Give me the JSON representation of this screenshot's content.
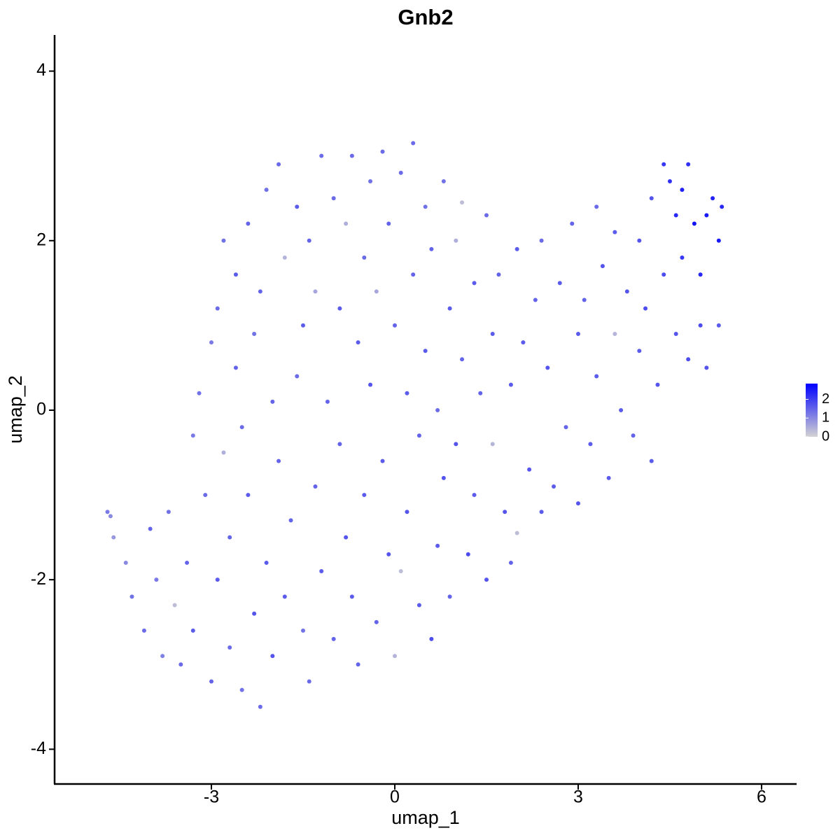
{
  "chart_data": {
    "type": "scatter",
    "title": "Gnb2",
    "x_label": "umap_1",
    "y_label": "umap_2",
    "xlim": [
      -5.565,
      6.573
    ],
    "xticks": [
      -3,
      0,
      3,
      6
    ],
    "ylim": [
      -4.41,
      4.426
    ],
    "yticks": [
      -4,
      -2,
      0,
      2,
      4
    ],
    "color_scale": {
      "lim": [
        0,
        2.84
      ],
      "ticks": [
        0,
        1,
        2
      ],
      "colors": [
        "#d3d3d3",
        "#0000ff"
      ]
    },
    "x": [
      -4.7,
      -4.65,
      -4.6,
      -4.4,
      -4.3,
      -4.1,
      -4.0,
      -3.9,
      -3.8,
      -3.7,
      -3.6,
      -3.5,
      -3.4,
      -3.3,
      -3.3,
      -3.2,
      -3.1,
      -3.0,
      -3.0,
      -2.9,
      -2.9,
      -2.8,
      -2.8,
      -2.7,
      -2.7,
      -2.6,
      -2.6,
      -2.5,
      -2.5,
      -2.4,
      -2.4,
      -2.3,
      -2.3,
      -2.2,
      -2.2,
      -2.1,
      -2.1,
      -2.0,
      -2.0,
      -1.9,
      -1.9,
      -1.8,
      -1.8,
      -1.7,
      -1.6,
      -1.6,
      -1.5,
      -1.5,
      -1.4,
      -1.4,
      -1.3,
      -1.3,
      -1.2,
      -1.2,
      -1.1,
      -1.0,
      -1.0,
      -0.9,
      -0.9,
      -0.8,
      -0.8,
      -0.7,
      -0.7,
      -0.6,
      -0.6,
      -0.5,
      -0.5,
      -0.4,
      -0.4,
      -0.3,
      -0.3,
      -0.2,
      -0.2,
      -0.1,
      -0.1,
      0.0,
      0.0,
      0.1,
      0.1,
      0.2,
      0.2,
      0.3,
      0.3,
      0.4,
      0.4,
      0.5,
      0.5,
      0.6,
      0.6,
      0.7,
      0.7,
      0.8,
      0.8,
      0.9,
      0.9,
      1.0,
      1.0,
      1.1,
      1.1,
      1.2,
      1.3,
      1.3,
      1.4,
      1.5,
      1.5,
      1.6,
      1.6,
      1.7,
      1.8,
      1.9,
      1.9,
      2.0,
      2.0,
      2.1,
      2.2,
      2.3,
      2.4,
      2.4,
      2.5,
      2.6,
      2.7,
      2.8,
      2.9,
      3.0,
      3.0,
      3.1,
      3.2,
      3.3,
      3.3,
      3.4,
      3.5,
      3.6,
      3.6,
      3.7,
      3.8,
      3.9,
      4.0,
      4.0,
      4.1,
      4.2,
      4.2,
      4.3,
      4.4,
      4.4,
      4.5,
      4.6,
      4.6,
      4.7,
      4.7,
      4.8,
      4.8,
      4.9,
      5.0,
      5.0,
      5.1,
      5.1,
      5.2,
      5.3,
      5.3,
      5.35
    ],
    "y": [
      -1.2,
      -1.25,
      -1.5,
      -1.8,
      -2.2,
      -2.6,
      -1.4,
      -2.0,
      -2.9,
      -1.2,
      -2.3,
      -3.0,
      -1.8,
      -0.3,
      -2.6,
      0.2,
      -1.0,
      -3.2,
      0.8,
      -2.0,
      1.2,
      -0.5,
      2.0,
      -1.5,
      -2.8,
      0.5,
      1.6,
      -3.3,
      -0.2,
      2.2,
      -1.0,
      -2.4,
      0.9,
      -3.5,
      1.4,
      2.6,
      -1.8,
      0.1,
      -2.9,
      2.9,
      -0.6,
      1.8,
      -2.2,
      -1.3,
      2.4,
      0.4,
      -2.6,
      1.0,
      -3.2,
      2.0,
      1.4,
      -0.9,
      3.0,
      -1.9,
      0.1,
      2.5,
      -2.7,
      1.2,
      -0.4,
      2.2,
      -1.5,
      3.0,
      -2.2,
      0.8,
      -3.0,
      1.8,
      -1.0,
      2.7,
      0.3,
      -2.5,
      1.4,
      3.05,
      -0.6,
      2.2,
      -1.7,
      1.0,
      -2.9,
      -1.9,
      2.8,
      0.2,
      -1.2,
      3.15,
      1.6,
      -2.3,
      -0.3,
      2.4,
      0.7,
      -2.7,
      1.9,
      -1.6,
      0.0,
      2.7,
      -0.8,
      1.2,
      -2.2,
      2.0,
      -0.4,
      2.45,
      0.6,
      -1.7,
      1.5,
      -1.0,
      0.2,
      -2.0,
      2.3,
      0.9,
      -0.4,
      1.6,
      -1.2,
      0.3,
      -1.8,
      1.9,
      -1.45,
      0.8,
      -0.7,
      1.3,
      -1.2,
      2.0,
      0.5,
      -0.9,
      1.5,
      -0.2,
      2.2,
      0.9,
      -1.1,
      1.3,
      -0.4,
      2.4,
      0.4,
      1.7,
      -0.8,
      0.9,
      2.1,
      0.0,
      1.4,
      -0.3,
      2.0,
      0.7,
      1.2,
      -0.6,
      2.5,
      0.3,
      1.6,
      2.9,
      2.7,
      0.9,
      2.3,
      1.8,
      2.6,
      0.6,
      2.9,
      2.2,
      1.6,
      1.0,
      2.3,
      0.5,
      2.5,
      2.0,
      1.0,
      2.4
    ],
    "values": [
      1.2,
      1.0,
      0.8,
      1.0,
      1.3,
      1.4,
      1.5,
      1.2,
      1.1,
      1.3,
      0.3,
      1.4,
      1.5,
      1.2,
      1.6,
      1.3,
      1.4,
      1.5,
      1.2,
      1.6,
      1.4,
      0.5,
      1.3,
      1.5,
      1.4,
      1.5,
      1.6,
      1.3,
      1.4,
      1.5,
      1.6,
      1.7,
      1.3,
      1.4,
      1.5,
      1.3,
      1.6,
      1.5,
      1.7,
      1.4,
      1.5,
      0.4,
      1.6,
      1.5,
      1.6,
      1.4,
      1.3,
      1.6,
      1.4,
      1.5,
      0.6,
      1.5,
      1.4,
      1.6,
      1.5,
      1.4,
      1.5,
      1.6,
      1.5,
      0.5,
      1.7,
      1.4,
      1.6,
      1.6,
      1.5,
      1.4,
      1.6,
      1.3,
      1.7,
      1.5,
      0.6,
      1.4,
      1.6,
      1.5,
      1.7,
      1.5,
      0.4,
      0.3,
      1.4,
      1.6,
      1.7,
      1.4,
      1.5,
      1.6,
      1.5,
      1.3,
      1.6,
      1.8,
      1.5,
      1.6,
      1.4,
      1.3,
      1.7,
      1.6,
      1.5,
      0.5,
      1.7,
      0.3,
      1.5,
      1.8,
      1.6,
      1.6,
      1.5,
      1.7,
      1.4,
      1.6,
      0.4,
      1.5,
      1.7,
      1.6,
      1.5,
      1.6,
      0.3,
      1.6,
      1.7,
      1.5,
      1.6,
      1.4,
      1.7,
      1.6,
      1.6,
      1.5,
      1.5,
      1.6,
      1.7,
      1.5,
      1.6,
      1.4,
      1.6,
      1.7,
      1.6,
      0.4,
      1.6,
      1.6,
      1.7,
      1.5,
      1.7,
      1.6,
      1.8,
      1.6,
      1.7,
      1.7,
      1.8,
      2.1,
      2.2,
      1.7,
      2.3,
      2.1,
      2.4,
      1.8,
      2.2,
      2.6,
      2.3,
      1.8,
      2.5,
      1.7,
      2.4,
      2.5,
      1.6,
      2.3
    ]
  }
}
